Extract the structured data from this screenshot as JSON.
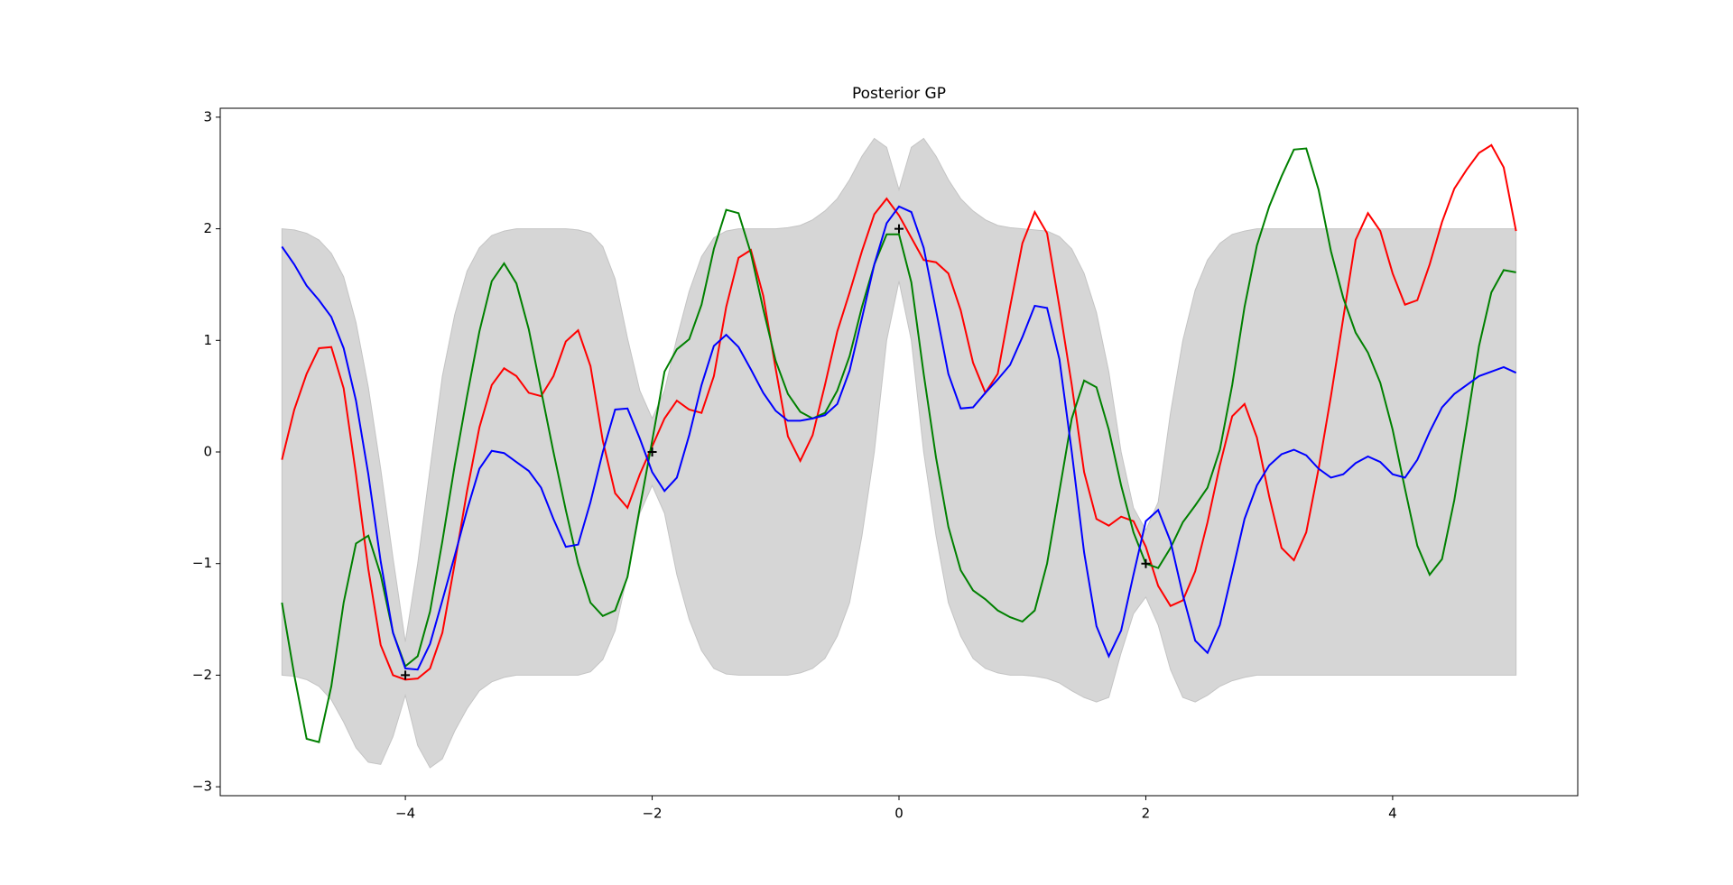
{
  "chart_data": {
    "type": "line",
    "title": "Posterior GP",
    "x": [
      -5,
      -4.9,
      -4.8,
      -4.7,
      -4.6,
      -4.5,
      -4.4,
      -4.3,
      -4.2,
      -4.1,
      -4,
      -3.9,
      -3.8,
      -3.7,
      -3.6,
      -3.5,
      -3.4,
      -3.3,
      -3.2,
      -3.1,
      -3,
      -2.9,
      -2.8,
      -2.7,
      -2.6,
      -2.5,
      -2.4,
      -2.3,
      -2.2,
      -2.1,
      -2,
      -1.9,
      -1.8,
      -1.7,
      -1.6,
      -1.5,
      -1.4,
      -1.3,
      -1.2,
      -1.1,
      -1,
      -0.9,
      -0.8,
      -0.7,
      -0.6,
      -0.5,
      -0.4,
      -0.3,
      -0.2,
      -0.1,
      0,
      0.1,
      0.2,
      0.3,
      0.4,
      0.5,
      0.6,
      0.7,
      0.8,
      0.9,
      1,
      1.1,
      1.2,
      1.3,
      1.4,
      1.5,
      1.6,
      1.7,
      1.8,
      1.9,
      2,
      2.1,
      2.2,
      2.3,
      2.4,
      2.5,
      2.6,
      2.7,
      2.8,
      2.9,
      3,
      3.1,
      3.2,
      3.3,
      3.4,
      3.5,
      3.6,
      3.7,
      3.8,
      3.9,
      4,
      4.1,
      4.2,
      4.3,
      4.4,
      4.5,
      4.6,
      4.7,
      4.8,
      4.9,
      5
    ],
    "band": {
      "color": "#d6d6d6",
      "upper": [
        2,
        1.99,
        1.96,
        1.9,
        1.78,
        1.57,
        1.16,
        0.58,
        -0.15,
        -0.95,
        -1.7,
        -1,
        -0.15,
        0.68,
        1.23,
        1.62,
        1.83,
        1.94,
        1.98,
        2,
        2,
        2,
        2,
        2,
        1.99,
        1.96,
        1.84,
        1.55,
        1.02,
        0.55,
        0.3,
        0.55,
        1.02,
        1.44,
        1.75,
        1.92,
        1.98,
        2,
        2,
        2,
        2,
        2.01,
        2.03,
        2.08,
        2.16,
        2.27,
        2.44,
        2.65,
        2.81,
        2.73,
        2.35,
        2.73,
        2.81,
        2.65,
        2.44,
        2.27,
        2.16,
        2.08,
        2.03,
        2.01,
        2,
        1.99,
        1.98,
        1.93,
        1.82,
        1.6,
        1.25,
        0.72,
        0,
        -0.5,
        -0.7,
        -0.45,
        0.35,
        1,
        1.45,
        1.72,
        1.87,
        1.95,
        1.98,
        2,
        2,
        2,
        2,
        2,
        2,
        2,
        2,
        2,
        2,
        2,
        2,
        2,
        2,
        2,
        2,
        2,
        2,
        2,
        2,
        2,
        2
      ],
      "lower": [
        -2,
        -2.01,
        -2.04,
        -2.1,
        -2.22,
        -2.42,
        -2.65,
        -2.78,
        -2.8,
        -2.55,
        -2.18,
        -2.63,
        -2.83,
        -2.75,
        -2.5,
        -2.3,
        -2.14,
        -2.06,
        -2.02,
        -2,
        -2,
        -2,
        -2,
        -2,
        -2,
        -1.97,
        -1.86,
        -1.6,
        -1.1,
        -0.55,
        -0.3,
        -0.55,
        -1.1,
        -1.5,
        -1.78,
        -1.94,
        -1.99,
        -2,
        -2,
        -2,
        -2,
        -2,
        -1.98,
        -1.94,
        -1.85,
        -1.65,
        -1.35,
        -0.75,
        0,
        1,
        1.53,
        1,
        0,
        -0.75,
        -1.35,
        -1.65,
        -1.85,
        -1.94,
        -1.98,
        -2,
        -2,
        -2.01,
        -2.03,
        -2.07,
        -2.14,
        -2.2,
        -2.24,
        -2.2,
        -1.8,
        -1.45,
        -1.3,
        -1.55,
        -1.95,
        -2.2,
        -2.24,
        -2.18,
        -2.1,
        -2.05,
        -2.02,
        -2,
        -2,
        -2,
        -2,
        -2,
        -2,
        -2,
        -2,
        -2,
        -2,
        -2,
        -2,
        -2,
        -2,
        -2,
        -2,
        -2,
        -2,
        -2,
        -2,
        -2,
        -2
      ]
    },
    "series": [
      {
        "color": "red",
        "values": [
          -0.07,
          0.38,
          0.7,
          0.93,
          0.94,
          0.57,
          -0.2,
          -1.05,
          -1.73,
          -2,
          -2.04,
          -2.03,
          -1.94,
          -1.62,
          -1,
          -0.35,
          0.22,
          0.6,
          0.75,
          0.68,
          0.53,
          0.5,
          0.68,
          0.99,
          1.09,
          0.77,
          0.1,
          -0.37,
          -0.5,
          -0.2,
          0.05,
          0.3,
          0.46,
          0.38,
          0.35,
          0.68,
          1.3,
          1.74,
          1.81,
          1.4,
          0.75,
          0.14,
          -0.08,
          0.15,
          0.6,
          1.08,
          1.43,
          1.8,
          2.13,
          2.27,
          2.12,
          1.92,
          1.72,
          1.7,
          1.6,
          1.27,
          0.8,
          0.53,
          0.7,
          1.3,
          1.87,
          2.15,
          1.96,
          1.3,
          0.6,
          -0.18,
          -0.6,
          -0.66,
          -0.58,
          -0.62,
          -0.85,
          -1.2,
          -1.38,
          -1.33,
          -1.07,
          -0.63,
          -0.12,
          0.32,
          0.43,
          0.13,
          -0.4,
          -0.86,
          -0.97,
          -0.72,
          -0.15,
          0.5,
          1.2,
          1.9,
          2.14,
          1.98,
          1.6,
          1.32,
          1.36,
          1.68,
          2.06,
          2.36,
          2.53,
          2.68,
          2.75,
          2.55,
          1.98
        ]
      },
      {
        "color": "green",
        "values": [
          -1.35,
          -2,
          -2.57,
          -2.6,
          -2.1,
          -1.35,
          -0.82,
          -0.75,
          -1.1,
          -1.62,
          -1.92,
          -1.83,
          -1.43,
          -0.8,
          -0.12,
          0.5,
          1.08,
          1.53,
          1.69,
          1.51,
          1.1,
          0.55,
          0,
          -0.52,
          -1,
          -1.35,
          -1.47,
          -1.42,
          -1.12,
          -0.5,
          0.1,
          0.72,
          0.92,
          1.01,
          1.32,
          1.82,
          2.17,
          2.14,
          1.78,
          1.28,
          0.82,
          0.52,
          0.36,
          0.3,
          0.35,
          0.55,
          0.86,
          1.3,
          1.68,
          1.95,
          1.95,
          1.52,
          0.7,
          -0.05,
          -0.67,
          -1.06,
          -1.24,
          -1.32,
          -1.42,
          -1.48,
          -1.52,
          -1.42,
          -1,
          -0.35,
          0.3,
          0.64,
          0.58,
          0.2,
          -0.3,
          -0.72,
          -1,
          -1.04,
          -0.86,
          -0.63,
          -0.48,
          -0.32,
          0.02,
          0.6,
          1.3,
          1.85,
          2.2,
          2.47,
          2.71,
          2.72,
          2.35,
          1.8,
          1.38,
          1.07,
          0.89,
          0.62,
          0.2,
          -0.33,
          -0.84,
          -1.1,
          -0.96,
          -0.43,
          0.25,
          0.95,
          1.43,
          1.63,
          1.61
        ]
      },
      {
        "color": "blue",
        "values": [
          1.84,
          1.68,
          1.49,
          1.36,
          1.21,
          0.93,
          0.46,
          -0.2,
          -0.98,
          -1.62,
          -1.94,
          -1.95,
          -1.72,
          -1.33,
          -0.93,
          -0.52,
          -0.15,
          0.01,
          -0.01,
          -0.09,
          -0.17,
          -0.32,
          -0.6,
          -0.85,
          -0.83,
          -0.45,
          0,
          0.38,
          0.39,
          0.12,
          -0.18,
          -0.35,
          -0.23,
          0.15,
          0.6,
          0.95,
          1.05,
          0.94,
          0.74,
          0.53,
          0.37,
          0.28,
          0.28,
          0.3,
          0.33,
          0.43,
          0.73,
          1.2,
          1.68,
          2.05,
          2.2,
          2.15,
          1.83,
          1.27,
          0.7,
          0.39,
          0.4,
          0.53,
          0.65,
          0.78,
          1.03,
          1.31,
          1.29,
          0.83,
          0,
          -0.9,
          -1.56,
          -1.83,
          -1.6,
          -1.1,
          -0.62,
          -0.52,
          -0.8,
          -1.28,
          -1.69,
          -1.8,
          -1.55,
          -1.08,
          -0.6,
          -0.3,
          -0.12,
          -0.02,
          0.02,
          -0.03,
          -0.15,
          -0.23,
          -0.2,
          -0.1,
          -0.04,
          -0.09,
          -0.2,
          -0.23,
          -0.07,
          0.18,
          0.4,
          0.52,
          0.6,
          0.68,
          0.72,
          0.76,
          0.71
        ]
      }
    ],
    "points": {
      "color": "#000000",
      "x": [
        -4,
        -2,
        0,
        2
      ],
      "y": [
        -2,
        0,
        2,
        -1
      ]
    },
    "xlim": [
      -5.5,
      5.5
    ],
    "ylim": [
      -3.08,
      3.08
    ],
    "xticks": [
      {
        "value": -4,
        "label": "−4"
      },
      {
        "value": -2,
        "label": "−2"
      },
      0,
      2,
      4
    ],
    "yticks": [
      {
        "value": -3,
        "label": "−3"
      },
      {
        "value": -2,
        "label": "−2"
      },
      {
        "value": -1,
        "label": "−1"
      },
      0,
      1,
      2,
      3
    ],
    "grid": false
  }
}
